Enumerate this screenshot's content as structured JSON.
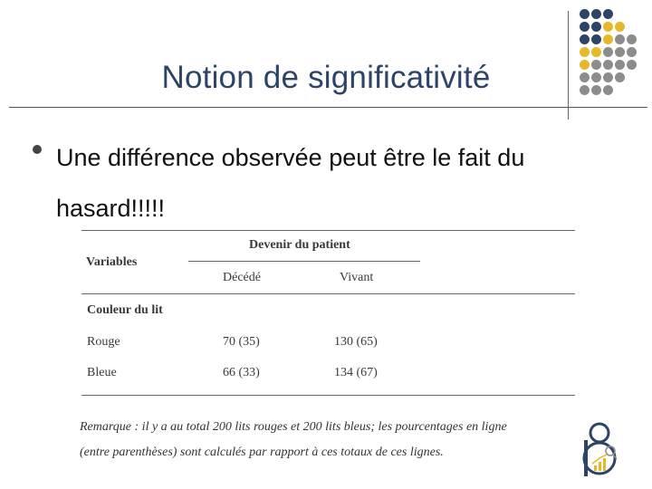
{
  "slide": {
    "title": "Notion de significativité",
    "bullet": "Une différence observée peut être le fait du hasard!!!!!"
  },
  "table": {
    "row_header": "Variables",
    "group_header": "Devenir du patient",
    "columns": [
      "Décédé",
      "Vivant"
    ],
    "section_label": "Couleur du lit",
    "rows": [
      {
        "label": "Rouge",
        "values": [
          "70 (35)",
          "130 (65)"
        ]
      },
      {
        "label": "Bleue",
        "values": [
          "66 (33)",
          "134 (67)"
        ]
      }
    ]
  },
  "remark": {
    "line1": "Remarque : il y a au total 200 lits rouges et 200 lits bleus; les pourcentages en ligne",
    "line2": "(entre parenthèses)  sont calculés par rapport à ces totaux de ces lignes."
  },
  "decor": {
    "accent_colors": [
      "#2d4468",
      "#e7b928",
      "#8c8c8c"
    ],
    "icons": [
      "dot-grid-decoration",
      "statistics-logo-icon"
    ]
  }
}
